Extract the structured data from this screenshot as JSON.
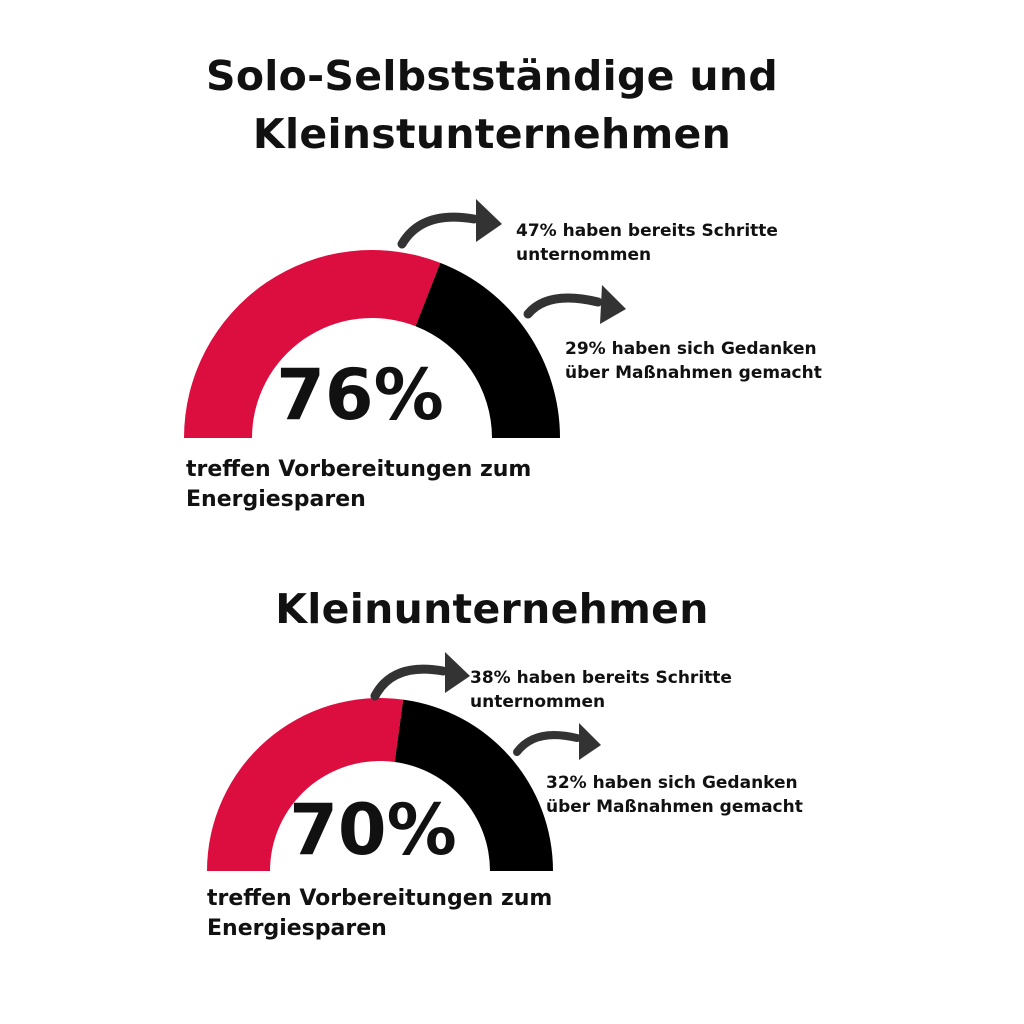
{
  "colors": {
    "red": "#dc0d3f",
    "black": "#000000",
    "arrow": "#333333"
  },
  "chart_data": [
    {
      "type": "pie",
      "shape": "semicircle gauge",
      "title_lines": [
        "Solo-Selbstständige und",
        "Kleinstunternehmen"
      ],
      "total_label": "76%",
      "total_value": 76,
      "caption_lines": [
        "treffen Vorbereitungen zum",
        "Energiesparen"
      ],
      "segments": [
        {
          "value": 47,
          "color": "#dc0d3f",
          "note_lines": [
            "47% haben bereits Schritte",
            "unternommen"
          ]
        },
        {
          "value": 29,
          "color": "#000000",
          "note_lines": [
            "29% haben sich Gedanken",
            "über Maßnahmen gemacht"
          ]
        }
      ]
    },
    {
      "type": "pie",
      "shape": "semicircle gauge",
      "title_lines": [
        "Kleinunternehmen"
      ],
      "total_label": "70%",
      "total_value": 70,
      "caption_lines": [
        "treffen Vorbereitungen zum",
        "Energiesparen"
      ],
      "segments": [
        {
          "value": 38,
          "color": "#dc0d3f",
          "note_lines": [
            "38% haben bereits Schritte",
            "unternommen"
          ]
        },
        {
          "value": 32,
          "color": "#000000",
          "note_lines": [
            "32% haben sich Gedanken",
            "über Maßnahmen gemacht"
          ]
        }
      ]
    }
  ]
}
